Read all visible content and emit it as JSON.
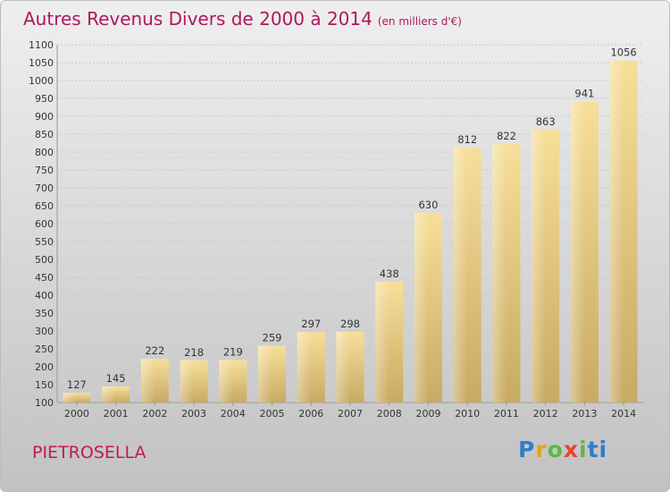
{
  "header": {
    "title": "Autres Revenus Divers de 2000 à 2014",
    "unit": "(en milliers d'€)"
  },
  "footer": {
    "location": "PIETROSELLA",
    "brand": "Proxiti"
  },
  "chart_data": {
    "type": "bar",
    "title": "Autres Revenus Divers de 2000 à 2014",
    "subtitle": "(en milliers d'€)",
    "xlabel": "",
    "ylabel": "",
    "categories": [
      "2000",
      "2001",
      "2002",
      "2003",
      "2004",
      "2005",
      "2006",
      "2007",
      "2008",
      "2009",
      "2010",
      "2011",
      "2012",
      "2013",
      "2014"
    ],
    "values": [
      127,
      145,
      222,
      218,
      219,
      259,
      297,
      298,
      438,
      630,
      812,
      822,
      863,
      941,
      1056
    ],
    "ylim": [
      100,
      1100
    ],
    "yticks": [
      100,
      150,
      200,
      250,
      300,
      350,
      400,
      450,
      500,
      550,
      600,
      650,
      700,
      750,
      800,
      850,
      900,
      950,
      1000,
      1050,
      1100
    ],
    "grid": true,
    "bar_color": "#e6c67a"
  }
}
